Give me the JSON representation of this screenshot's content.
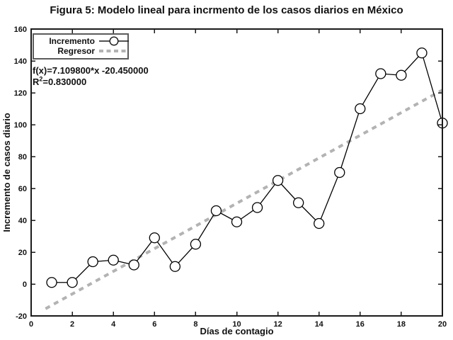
{
  "chart_data": {
    "type": "line",
    "title": "Figura 5: Modelo lineal para incrmento de los casos diarios en México",
    "xlabel": "Días de contagio",
    "ylabel": "Incremento de casos diario",
    "xlim": [
      0,
      20
    ],
    "ylim": [
      -20,
      160
    ],
    "xticks": [
      0,
      2,
      4,
      6,
      8,
      10,
      12,
      14,
      16,
      18,
      20
    ],
    "yticks": [
      -20,
      0,
      20,
      40,
      60,
      80,
      100,
      120,
      140,
      160
    ],
    "grid": false,
    "legend_position": "top-left",
    "x": [
      1,
      2,
      3,
      4,
      5,
      6,
      7,
      8,
      9,
      10,
      11,
      12,
      13,
      14,
      15,
      16,
      17,
      18,
      19,
      20
    ],
    "series": [
      {
        "name": "Incremento",
        "type": "line-with-circle-markers",
        "color": "#000000",
        "values": [
          1,
          1,
          14,
          15,
          12,
          29,
          11,
          25,
          46,
          39,
          48,
          65,
          51,
          38,
          70,
          110,
          132,
          131,
          145,
          101
        ]
      },
      {
        "name": "Regresor",
        "type": "dashed-line",
        "color": "#b3b3b3",
        "slope": 7.1098,
        "intercept": -20.45,
        "x_start": 0.7,
        "x_end": 20
      }
    ],
    "annotation": {
      "line1": "f(x)=7.109800*x -20.450000",
      "r2_base": "R",
      "r2_sup": "2",
      "r2_rest": "=0.830000"
    }
  },
  "colors": {
    "axis": "#1a1a1a",
    "text": "#111111",
    "marker_fill": "#ffffff",
    "regressor_gray": "#b3b3b3"
  }
}
